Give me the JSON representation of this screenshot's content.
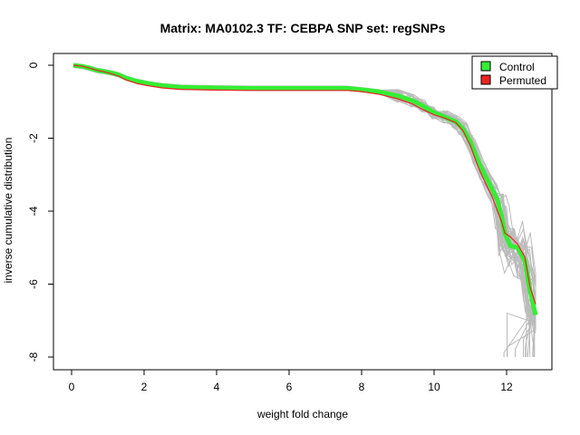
{
  "chart_data": {
    "type": "line",
    "title": "Matrix: MA0102.3 TF: CEBPA SNP set: regSNPs",
    "xlabel": "weight fold change",
    "ylabel": "inverse cumulative distribution",
    "xlim": [
      0,
      12.8
    ],
    "ylim": [
      -8,
      0
    ],
    "xticks": [
      0,
      2,
      4,
      6,
      8,
      10,
      12
    ],
    "yticks": [
      0,
      -2,
      -4,
      -6,
      -8
    ],
    "legend_position": "top-right",
    "series": [
      {
        "name": "Control",
        "color": "#33ee33",
        "x": [
          0.05,
          0.3,
          0.5,
          0.7,
          0.9,
          1.1,
          1.3,
          1.5,
          1.8,
          2.1,
          2.5,
          3.0,
          4.0,
          5.0,
          6.0,
          7.0,
          7.6,
          8.0,
          8.5,
          9.0,
          9.4,
          9.7,
          10.0,
          10.3,
          10.6,
          10.8,
          11.0,
          11.2,
          11.4,
          11.6,
          11.75,
          11.85,
          11.95,
          12.1,
          12.3,
          12.5,
          12.65,
          12.8
        ],
        "values": [
          0,
          -0.03,
          -0.08,
          -0.14,
          -0.17,
          -0.21,
          -0.26,
          -0.35,
          -0.44,
          -0.5,
          -0.56,
          -0.6,
          -0.62,
          -0.63,
          -0.63,
          -0.63,
          -0.63,
          -0.67,
          -0.73,
          -0.84,
          -0.97,
          -1.12,
          -1.3,
          -1.42,
          -1.55,
          -1.75,
          -2.1,
          -2.6,
          -3.0,
          -3.4,
          -3.7,
          -4.1,
          -4.6,
          -4.95,
          -5.0,
          -5.35,
          -6.2,
          -6.85
        ]
      },
      {
        "name": "Permuted",
        "color": "#ee2222",
        "x": [
          0.05,
          0.3,
          0.5,
          0.7,
          0.9,
          1.1,
          1.3,
          1.5,
          1.8,
          2.1,
          2.5,
          3.0,
          4.0,
          5.0,
          6.0,
          7.0,
          7.6,
          8.0,
          8.5,
          9.0,
          9.4,
          9.7,
          10.0,
          10.3,
          10.6,
          10.8,
          11.0,
          11.2,
          11.4,
          11.6,
          11.75,
          11.85,
          11.95,
          12.1,
          12.3,
          12.5,
          12.65,
          12.8
        ],
        "values": [
          0,
          -0.03,
          -0.08,
          -0.14,
          -0.18,
          -0.23,
          -0.3,
          -0.4,
          -0.5,
          -0.56,
          -0.62,
          -0.66,
          -0.68,
          -0.69,
          -0.69,
          -0.69,
          -0.69,
          -0.72,
          -0.8,
          -0.92,
          -1.06,
          -1.22,
          -1.36,
          -1.45,
          -1.57,
          -1.8,
          -2.2,
          -2.75,
          -3.2,
          -3.6,
          -4.0,
          -4.25,
          -4.6,
          -4.7,
          -4.9,
          -5.25,
          -6.1,
          -6.55
        ]
      },
      {
        "name": "background permutations",
        "color": "#bbbbbb",
        "count": 40
      }
    ]
  }
}
